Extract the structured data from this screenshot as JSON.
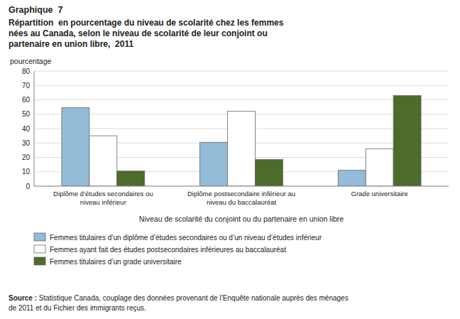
{
  "chart_data": {
    "type": "bar",
    "title": "Graphique  7",
    "subtitle": "Répartition  en pourcentage du niveau de scolarité chez les femmes\nnées au Canada, selon le niveau de scolarité de leur conjoint ou\npartenaire en union libre,  2011",
    "ylabel": "pourcentage",
    "xlabel": "Niveau de scolarité du conjoint ou du partenaire en union libre",
    "categories": [
      "Diplôme d’études secondaires ou\nniveau inférieur",
      "Diplôme postsecondaire inférieur au\nniveau du baccalauréat",
      "Grade universitaire"
    ],
    "series": [
      {
        "name": "Femmes titulaires d’un diplôme d’études secondaires ou d’un niveau d’études inférieur",
        "color": "#92bcd8",
        "values": [
          54.5,
          30.5,
          11.0
        ]
      },
      {
        "name": "Femmes ayant fait des études postsecondaires inférieures au baccalauréat",
        "color": "#ffffff",
        "values": [
          35.0,
          52.0,
          26.0
        ]
      },
      {
        "name": "Femmes titulaires d’un grade universitaire",
        "color": "#4d6b2a",
        "values": [
          10.5,
          18.5,
          63.0
        ]
      }
    ],
    "ylim": [
      0,
      80
    ],
    "yticks": [
      0,
      10,
      20,
      30,
      40,
      50,
      60,
      70,
      80
    ],
    "grid": true,
    "legend": "bottom",
    "annotations": [
      "Source :",
      "Statistique Canada, couplage des données provenant de l’Enquête nationale auprès des ménages\nde 2011 et du Fichier des immigrants reçus."
    ]
  }
}
